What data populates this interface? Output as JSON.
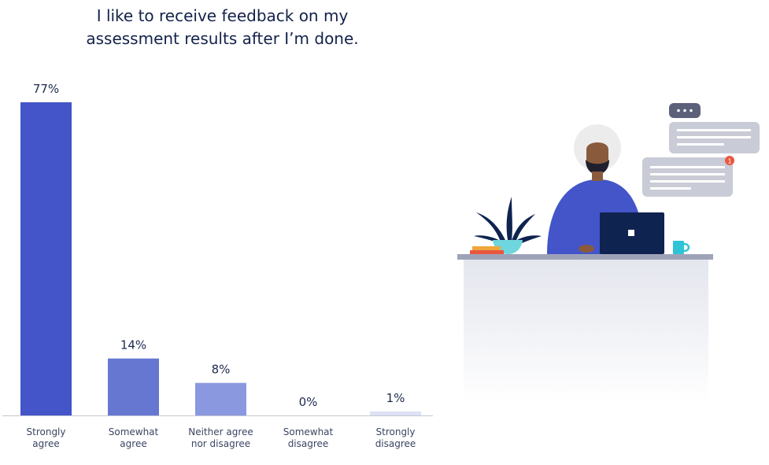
{
  "chart_data": {
    "type": "bar",
    "title": [
      "I like to receive feedback on my",
      "assessment results after I’m done."
    ],
    "categories": [
      [
        "Strongly",
        "agree"
      ],
      [
        "Somewhat",
        "agree"
      ],
      [
        "Neither agree",
        "nor disagree"
      ],
      [
        "Somewhat",
        "disagree"
      ],
      [
        "Strongly",
        "disagree"
      ]
    ],
    "values": [
      77,
      14,
      8,
      0,
      1
    ],
    "value_labels": [
      "77%",
      "14%",
      "8%",
      "0%",
      "1%"
    ],
    "colors": [
      "#4355c9",
      "#6677d2",
      "#8a98df",
      "#cbd1f0",
      "#dde1f5"
    ],
    "ylim": [
      0,
      77
    ],
    "xlabel": "",
    "ylabel": "",
    "grid": false,
    "legend": "none"
  },
  "illustration": {
    "chat_badge": "1",
    "colors": {
      "shirt": "#4355c9",
      "laptop": "#0f2350",
      "turban": "#ececec",
      "skin": "#8a5a3c",
      "desk_top": "#9ea3b8",
      "bubble": "#c9cbd6",
      "badge": "#e8573f",
      "mug": "#2ec4d6",
      "plant": "#0f2350"
    }
  }
}
